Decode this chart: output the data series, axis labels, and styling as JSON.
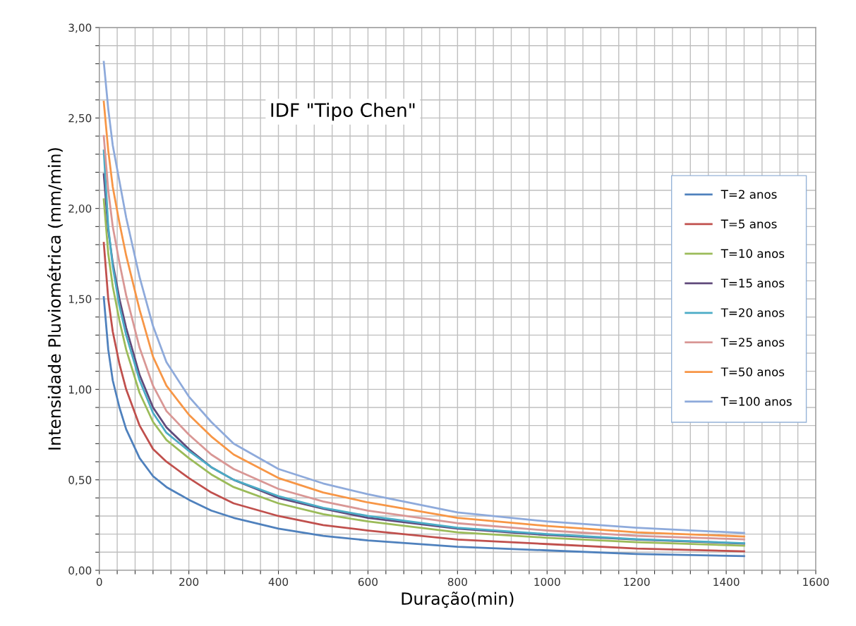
{
  "chart_data": {
    "type": "line",
    "title": "IDF \"Tipo Chen\"",
    "xlabel": "Duração(min)",
    "ylabel": "Intensidade Pluviométrica (mm/min)",
    "x": [
      10,
      20,
      30,
      45,
      60,
      90,
      120,
      150,
      200,
      250,
      300,
      400,
      500,
      600,
      800,
      1000,
      1200,
      1440
    ],
    "series": [
      {
        "name": "T=2 anos",
        "color": "#4f81bd",
        "values": [
          1.51,
          1.22,
          1.05,
          0.9,
          0.78,
          0.62,
          0.52,
          0.46,
          0.39,
          0.33,
          0.29,
          0.23,
          0.19,
          0.165,
          0.13,
          0.11,
          0.09,
          0.078
        ]
      },
      {
        "name": "T=5 anos",
        "color": "#c0504d",
        "values": [
          1.81,
          1.5,
          1.32,
          1.14,
          1.0,
          0.8,
          0.67,
          0.6,
          0.51,
          0.43,
          0.37,
          0.3,
          0.25,
          0.22,
          0.17,
          0.145,
          0.12,
          0.105
        ]
      },
      {
        "name": "T=10 anos",
        "color": "#9bbb59",
        "values": [
          2.05,
          1.75,
          1.57,
          1.38,
          1.22,
          0.98,
          0.82,
          0.72,
          0.62,
          0.53,
          0.46,
          0.37,
          0.31,
          0.27,
          0.21,
          0.18,
          0.155,
          0.136
        ]
      },
      {
        "name": "T=15 anos",
        "color": "#604a7b",
        "values": [
          2.19,
          1.88,
          1.7,
          1.5,
          1.34,
          1.08,
          0.9,
          0.79,
          0.67,
          0.57,
          0.5,
          0.4,
          0.34,
          0.29,
          0.23,
          0.195,
          0.17,
          0.148
        ]
      },
      {
        "name": "T=20 anos",
        "color": "#4bacc6",
        "values": [
          2.32,
          1.9,
          1.68,
          1.46,
          1.3,
          1.05,
          0.87,
          0.76,
          0.66,
          0.57,
          0.5,
          0.41,
          0.345,
          0.3,
          0.235,
          0.2,
          0.172,
          0.15
        ]
      },
      {
        "name": "T=25 anos",
        "color": "#d99795",
        "values": [
          2.4,
          2.1,
          1.9,
          1.7,
          1.52,
          1.23,
          1.02,
          0.88,
          0.75,
          0.64,
          0.56,
          0.45,
          0.38,
          0.33,
          0.26,
          0.22,
          0.19,
          0.171
        ]
      },
      {
        "name": "T=50 anos",
        "color": "#f79646",
        "values": [
          2.59,
          2.32,
          2.12,
          1.92,
          1.74,
          1.44,
          1.18,
          1.02,
          0.86,
          0.74,
          0.64,
          0.51,
          0.43,
          0.375,
          0.29,
          0.245,
          0.21,
          0.187
        ]
      },
      {
        "name": "T=100 anos",
        "color": "#8eaadb",
        "values": [
          2.81,
          2.55,
          2.35,
          2.15,
          1.95,
          1.62,
          1.35,
          1.15,
          0.96,
          0.82,
          0.7,
          0.56,
          0.48,
          0.42,
          0.32,
          0.27,
          0.235,
          0.206
        ]
      }
    ],
    "xlim": [
      0,
      1600
    ],
    "xticks": [
      0,
      {
        "value": 40,
        "label": null
      },
      {
        "value": 80,
        "label": null
      },
      {
        "value": 120,
        "label": null
      },
      {
        "value": 160,
        "label": null
      },
      200,
      {
        "value": 240,
        "label": null
      },
      {
        "value": 280,
        "label": null
      },
      {
        "value": 320,
        "label": null
      },
      {
        "value": 360,
        "label": null
      },
      400,
      {
        "value": 440,
        "label": null
      },
      {
        "value": 480,
        "label": null
      },
      {
        "value": 520,
        "label": null
      },
      {
        "value": 560,
        "label": null
      },
      600,
      {
        "value": 640,
        "label": null
      },
      {
        "value": 680,
        "label": null
      },
      {
        "value": 720,
        "label": null
      },
      {
        "value": 760,
        "label": null
      },
      800,
      {
        "value": 840,
        "label": null
      },
      {
        "value": 880,
        "label": null
      },
      {
        "value": 920,
        "label": null
      },
      {
        "value": 960,
        "label": null
      },
      1000,
      {
        "value": 1040,
        "label": null
      },
      {
        "value": 1080,
        "label": null
      },
      {
        "value": 1120,
        "label": null
      },
      {
        "value": 1160,
        "label": null
      },
      1200,
      {
        "value": 1240,
        "label": null
      },
      {
        "value": 1280,
        "label": null
      },
      {
        "value": 1320,
        "label": null
      },
      {
        "value": 1360,
        "label": null
      },
      1400,
      {
        "value": 1440,
        "label": null
      },
      {
        "value": 1480,
        "label": null
      },
      {
        "value": 1520,
        "label": null
      },
      {
        "value": 1560,
        "label": null
      },
      1600
    ],
    "ylim": [
      0,
      3
    ],
    "yticks": [
      {
        "value": 0,
        "label": "0,00"
      },
      {
        "value": 0.1,
        "label": null
      },
      {
        "value": 0.2,
        "label": null
      },
      {
        "value": 0.3,
        "label": null
      },
      {
        "value": 0.4,
        "label": null
      },
      {
        "value": 0.5,
        "label": "0,50"
      },
      {
        "value": 0.6,
        "label": null
      },
      {
        "value": 0.7,
        "label": null
      },
      {
        "value": 0.8,
        "label": null
      },
      {
        "value": 0.9,
        "label": null
      },
      {
        "value": 1.0,
        "label": "1,00"
      },
      {
        "value": 1.1,
        "label": null
      },
      {
        "value": 1.2,
        "label": null
      },
      {
        "value": 1.3,
        "label": null
      },
      {
        "value": 1.4,
        "label": null
      },
      {
        "value": 1.5,
        "label": "1,50"
      },
      {
        "value": 1.6,
        "label": null
      },
      {
        "value": 1.7,
        "label": null
      },
      {
        "value": 1.8,
        "label": null
      },
      {
        "value": 1.9,
        "label": null
      },
      {
        "value": 2.0,
        "label": "2,00"
      },
      {
        "value": 2.1,
        "label": null
      },
      {
        "value": 2.2,
        "label": null
      },
      {
        "value": 2.3,
        "label": null
      },
      {
        "value": 2.4,
        "label": null
      },
      {
        "value": 2.5,
        "label": "2,50"
      },
      {
        "value": 2.6,
        "label": null
      },
      {
        "value": 2.7,
        "label": null
      },
      {
        "value": 2.8,
        "label": null
      },
      {
        "value": 2.9,
        "label": null
      },
      {
        "value": 3.0,
        "label": "3,00"
      }
    ],
    "grid": true,
    "legend": "right"
  }
}
